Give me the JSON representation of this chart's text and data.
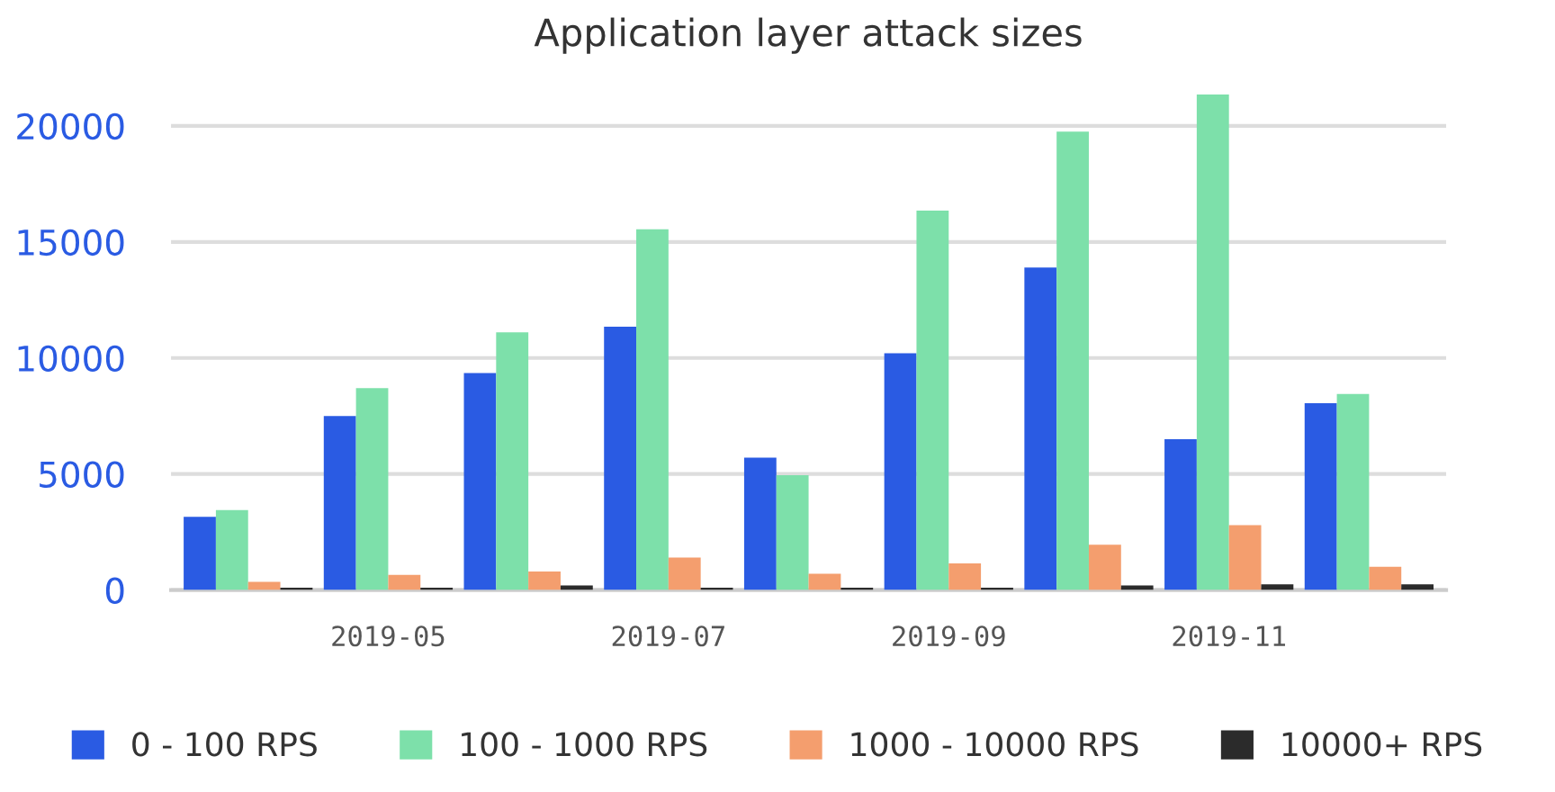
{
  "chart_data": {
    "type": "bar",
    "title": "Application layer attack sizes",
    "categories": [
      null,
      "2019-05",
      null,
      "2019-07",
      null,
      "2019-09",
      null,
      "2019-11",
      null
    ],
    "series": [
      {
        "name": "0 - 100 RPS",
        "color": "#2a5be3",
        "values": [
          3150,
          7500,
          9350,
          11350,
          5700,
          10200,
          13900,
          6500,
          8050
        ]
      },
      {
        "name": "100 - 1000 RPS",
        "color": "#7de0aa",
        "values": [
          3450,
          8700,
          11100,
          15550,
          4950,
          16350,
          19750,
          21350,
          8450
        ]
      },
      {
        "name": "1000 - 10000 RPS",
        "color": "#f49e6e",
        "values": [
          350,
          650,
          800,
          1400,
          700,
          1150,
          1950,
          2800,
          1000
        ]
      },
      {
        "name": "10000+ RPS",
        "color": "#2b2b2b",
        "values": [
          100,
          100,
          200,
          100,
          100,
          100,
          200,
          250,
          250
        ]
      }
    ],
    "ylim": [
      0,
      21500
    ],
    "yticks": [
      0,
      5000,
      10000,
      15000,
      20000
    ],
    "grid": "y",
    "legend": "bottom"
  }
}
